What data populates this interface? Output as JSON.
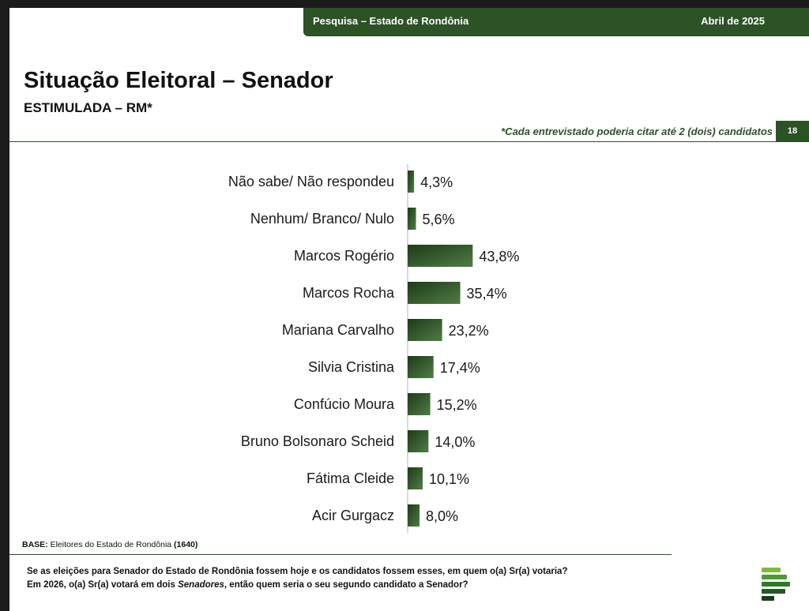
{
  "header": {
    "survey": "Pesquisa – Estado de Rondônia",
    "date": "Abril de 2025"
  },
  "page": {
    "title": "Situação Eleitoral – Senador",
    "subtitle": "ESTIMULADA – RM*",
    "note": "*Cada entrevistado poderia citar até 2 (dois) candidatos",
    "page_number": "18"
  },
  "footer": {
    "base_label": "BASE:",
    "base_text": "Eleitores do Estado de Rondônia",
    "base_count": "(1640)",
    "question_line1": "Se as eleições para Senador do Estado de Rondônia fossem hoje e os candidatos fossem esses, em quem o(a) Sr(a) votaria?",
    "question_line2_a": "Em 2026, o(a) Sr(a) votará em dois ",
    "question_line2_em": "Senadores",
    "question_line2_b": ", então quem seria o seu segundo candidato a Senador?"
  },
  "colors": {
    "brand_green": "#2c5226",
    "bar_dark": "#1d3a18",
    "bar_light": "#4f7d45"
  },
  "icons": {
    "logo": "stacked-bars-logo"
  },
  "chart_data": {
    "type": "bar",
    "orientation": "horizontal",
    "categories": [
      "Não sabe/ Não respondeu",
      "Nenhum/ Branco/ Nulo",
      "Marcos Rogério",
      "Marcos Rocha",
      "Mariana Carvalho",
      "Silvia Cristina",
      "Confúcio Moura",
      "Bruno Bolsonaro Scheid",
      "Fátima Cleide",
      "Acir Gurgacz"
    ],
    "values": [
      4.3,
      5.6,
      43.8,
      35.4,
      23.2,
      17.4,
      15.2,
      14.0,
      10.1,
      8.0
    ],
    "value_labels": [
      "4,3%",
      "5,6%",
      "43,8%",
      "35,4%",
      "23,2%",
      "17,4%",
      "15,2%",
      "14,0%",
      "10,1%",
      "8,0%"
    ],
    "unit": "%",
    "grid": false,
    "legend": "none"
  }
}
